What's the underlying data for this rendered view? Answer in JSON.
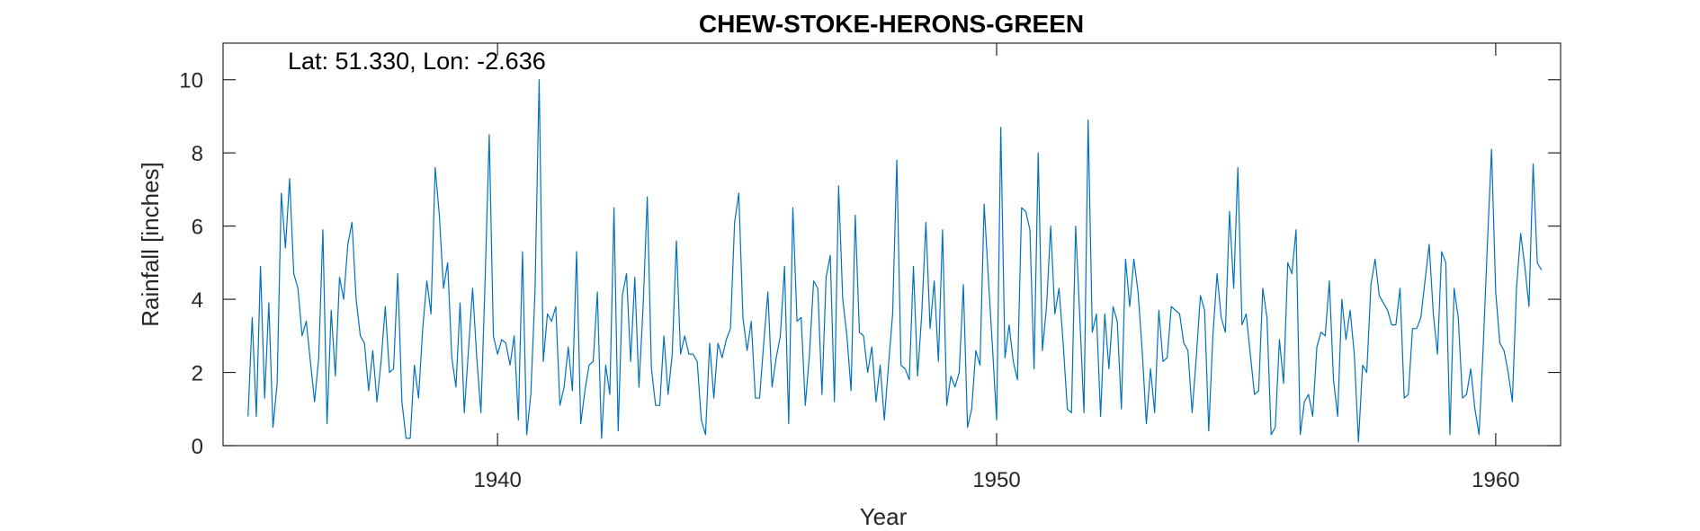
{
  "chart_data": {
    "type": "line",
    "title": "CHEW-STOKE-HERONS-GREEN",
    "annotation": "Lat: 51.330, Lon: -2.636",
    "xlabel": "Year",
    "ylabel": "Rainfall [inches]",
    "xlim": [
      1934.5,
      1961.3
    ],
    "ylim": [
      0,
      11
    ],
    "xticks": [
      1940,
      1950,
      1960
    ],
    "yticks": [
      0,
      2,
      4,
      6,
      8,
      10
    ],
    "grid": false,
    "line_color": "#0072BD",
    "series": [
      {
        "x_start": 1935.0,
        "x_step_months": 1,
        "values": [
          0.8,
          3.5,
          0.8,
          4.9,
          1.3,
          3.9,
          0.5,
          1.7,
          6.9,
          5.4,
          7.3,
          4.7,
          4.3,
          3.0,
          3.4,
          2.3,
          1.2,
          2.4,
          5.9,
          0.6,
          3.7,
          1.9,
          4.6,
          4.0,
          5.5,
          6.1,
          4.0,
          3.0,
          2.8,
          1.5,
          2.6,
          1.2,
          2.3,
          3.8,
          2.0,
          2.1,
          4.7,
          1.2,
          0.2,
          0.2,
          2.2,
          1.3,
          3.2,
          4.5,
          3.6,
          7.6,
          6.3,
          4.3,
          5.0,
          2.4,
          1.6,
          3.9,
          0.9,
          2.6,
          4.3,
          2.4,
          0.9,
          4.5,
          8.5,
          3.0,
          2.5,
          2.9,
          2.8,
          2.2,
          3.0,
          0.7,
          5.3,
          0.3,
          1.4,
          4.2,
          10.0,
          2.3,
          3.6,
          3.4,
          3.8,
          1.1,
          1.6,
          2.7,
          1.5,
          5.3,
          0.6,
          1.5,
          2.2,
          2.3,
          4.2,
          0.2,
          2.2,
          1.4,
          6.5,
          0.4,
          4.1,
          4.7,
          2.3,
          4.6,
          1.6,
          3.8,
          6.8,
          2.1,
          1.1,
          1.1,
          3.0,
          1.4,
          2.5,
          5.6,
          2.5,
          3.0,
          2.5,
          2.5,
          2.3,
          0.7,
          0.3,
          2.8,
          1.3,
          2.8,
          2.4,
          2.9,
          3.2,
          6.1,
          6.9,
          3.5,
          2.6,
          3.4,
          1.3,
          1.3,
          2.8,
          4.2,
          1.6,
          2.4,
          3.0,
          4.9,
          0.6,
          6.5,
          3.4,
          3.5,
          1.1,
          2.5,
          4.5,
          4.3,
          1.4,
          4.6,
          5.2,
          1.2,
          7.1,
          4.0,
          3.0,
          1.5,
          6.3,
          3.1,
          3.0,
          2.0,
          2.7,
          1.2,
          2.2,
          0.7,
          2.2,
          3.6,
          7.8,
          2.2,
          2.1,
          1.8,
          4.9,
          1.9,
          3.6,
          6.1,
          3.2,
          4.5,
          2.3,
          5.9,
          1.1,
          1.9,
          1.6,
          2.0,
          4.4,
          0.5,
          1.0,
          2.6,
          2.2,
          6.6,
          4.6,
          2.7,
          0.7,
          8.7,
          2.4,
          3.3,
          2.3,
          1.8,
          6.5,
          6.4,
          5.9,
          2.1,
          8.0,
          2.6,
          3.8,
          6.0,
          3.6,
          4.3,
          2.8,
          1.0,
          0.9,
          6.0,
          3.5,
          0.9,
          8.9,
          3.1,
          3.6,
          0.8,
          3.6,
          2.1,
          3.8,
          3.4,
          1.0,
          5.1,
          3.8,
          5.1,
          4.2,
          2.6,
          0.6,
          2.1,
          0.9,
          3.7,
          2.3,
          2.4,
          3.8,
          3.7,
          3.6,
          2.8,
          2.6,
          0.9,
          2.4,
          4.1,
          3.7,
          0.4,
          3.0,
          4.7,
          3.5,
          3.1,
          6.4,
          4.3,
          7.6,
          3.3,
          3.6,
          2.5,
          1.4,
          1.5,
          4.3,
          3.5,
          0.3,
          0.5,
          2.9,
          1.7,
          5.0,
          4.7,
          5.9,
          0.3,
          1.2,
          1.4,
          0.8,
          2.7,
          3.1,
          3.0,
          4.5,
          1.8,
          0.8,
          4.0,
          2.9,
          3.7,
          2.5,
          0.1,
          2.2,
          2.0,
          4.4,
          5.1,
          4.1,
          3.9,
          3.7,
          3.3,
          3.3,
          4.3,
          1.3,
          1.4,
          3.2,
          3.2,
          3.5,
          4.5,
          5.5,
          3.6,
          2.5,
          5.3,
          5.0,
          0.3,
          4.3,
          3.5,
          1.3,
          1.4,
          2.1,
          1.0,
          0.3,
          2.7,
          5.5,
          8.1,
          4.2,
          2.8,
          2.6,
          2.0,
          1.2,
          4.3,
          5.8,
          4.9,
          3.8,
          7.7,
          5.0,
          4.8
        ]
      }
    ]
  }
}
